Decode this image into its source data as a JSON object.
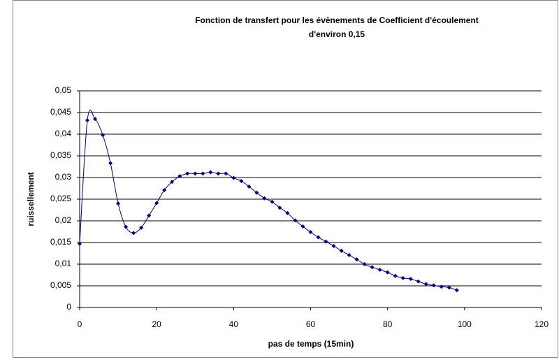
{
  "chart_data": {
    "type": "scatter-line",
    "title": [
      "Fonction de transfert pour les évènements de Coefficient d'écoulement",
      "d'environ 0,15"
    ],
    "x_label": "pas de temps (15min)",
    "y_label": "ruissellement",
    "x": [
      0,
      2,
      4,
      6,
      8,
      10,
      12,
      14,
      16,
      18,
      20,
      22,
      24,
      26,
      28,
      30,
      32,
      34,
      36,
      38,
      40,
      42,
      44,
      46,
      48,
      50,
      52,
      54,
      56,
      58,
      60,
      62,
      64,
      66,
      68,
      70,
      72,
      74,
      76,
      78,
      80,
      82,
      84,
      86,
      88,
      90,
      92,
      94,
      96,
      98
    ],
    "values": [
      0.0147,
      0.0432,
      0.0435,
      0.0398,
      0.0333,
      0.024,
      0.0186,
      0.0172,
      0.0184,
      0.0212,
      0.0241,
      0.0271,
      0.029,
      0.0303,
      0.0309,
      0.0309,
      0.0309,
      0.0312,
      0.0309,
      0.0309,
      0.0299,
      0.0292,
      0.0279,
      0.0265,
      0.0252,
      0.0244,
      0.023,
      0.0218,
      0.0201,
      0.0187,
      0.0174,
      0.0162,
      0.0152,
      0.0142,
      0.0131,
      0.0121,
      0.0111,
      0.01,
      0.0093,
      0.0087,
      0.0081,
      0.0073,
      0.0068,
      0.0066,
      0.006,
      0.0054,
      0.0051,
      0.0048,
      0.0046,
      0.004
    ],
    "color": "#000080",
    "xlim": [
      0,
      120
    ],
    "xticks": [
      0,
      20,
      40,
      60,
      80,
      100,
      120
    ],
    "ylim": [
      0,
      0.05
    ],
    "yticks": [
      0,
      {
        "value": 0.005,
        "label": "0,005"
      },
      {
        "value": 0.01,
        "label": "0,01"
      },
      {
        "value": 0.015,
        "label": "0,015"
      },
      {
        "value": 0.02,
        "label": "0,02"
      },
      {
        "value": 0.025,
        "label": "0,025"
      },
      {
        "value": 0.03,
        "label": "0,03"
      },
      {
        "value": 0.035,
        "label": "0,035"
      },
      {
        "value": 0.04,
        "label": "0,04"
      },
      {
        "value": 0.045,
        "label": "0,045"
      },
      {
        "value": 0.05,
        "label": "0,05"
      }
    ],
    "grid": true
  }
}
